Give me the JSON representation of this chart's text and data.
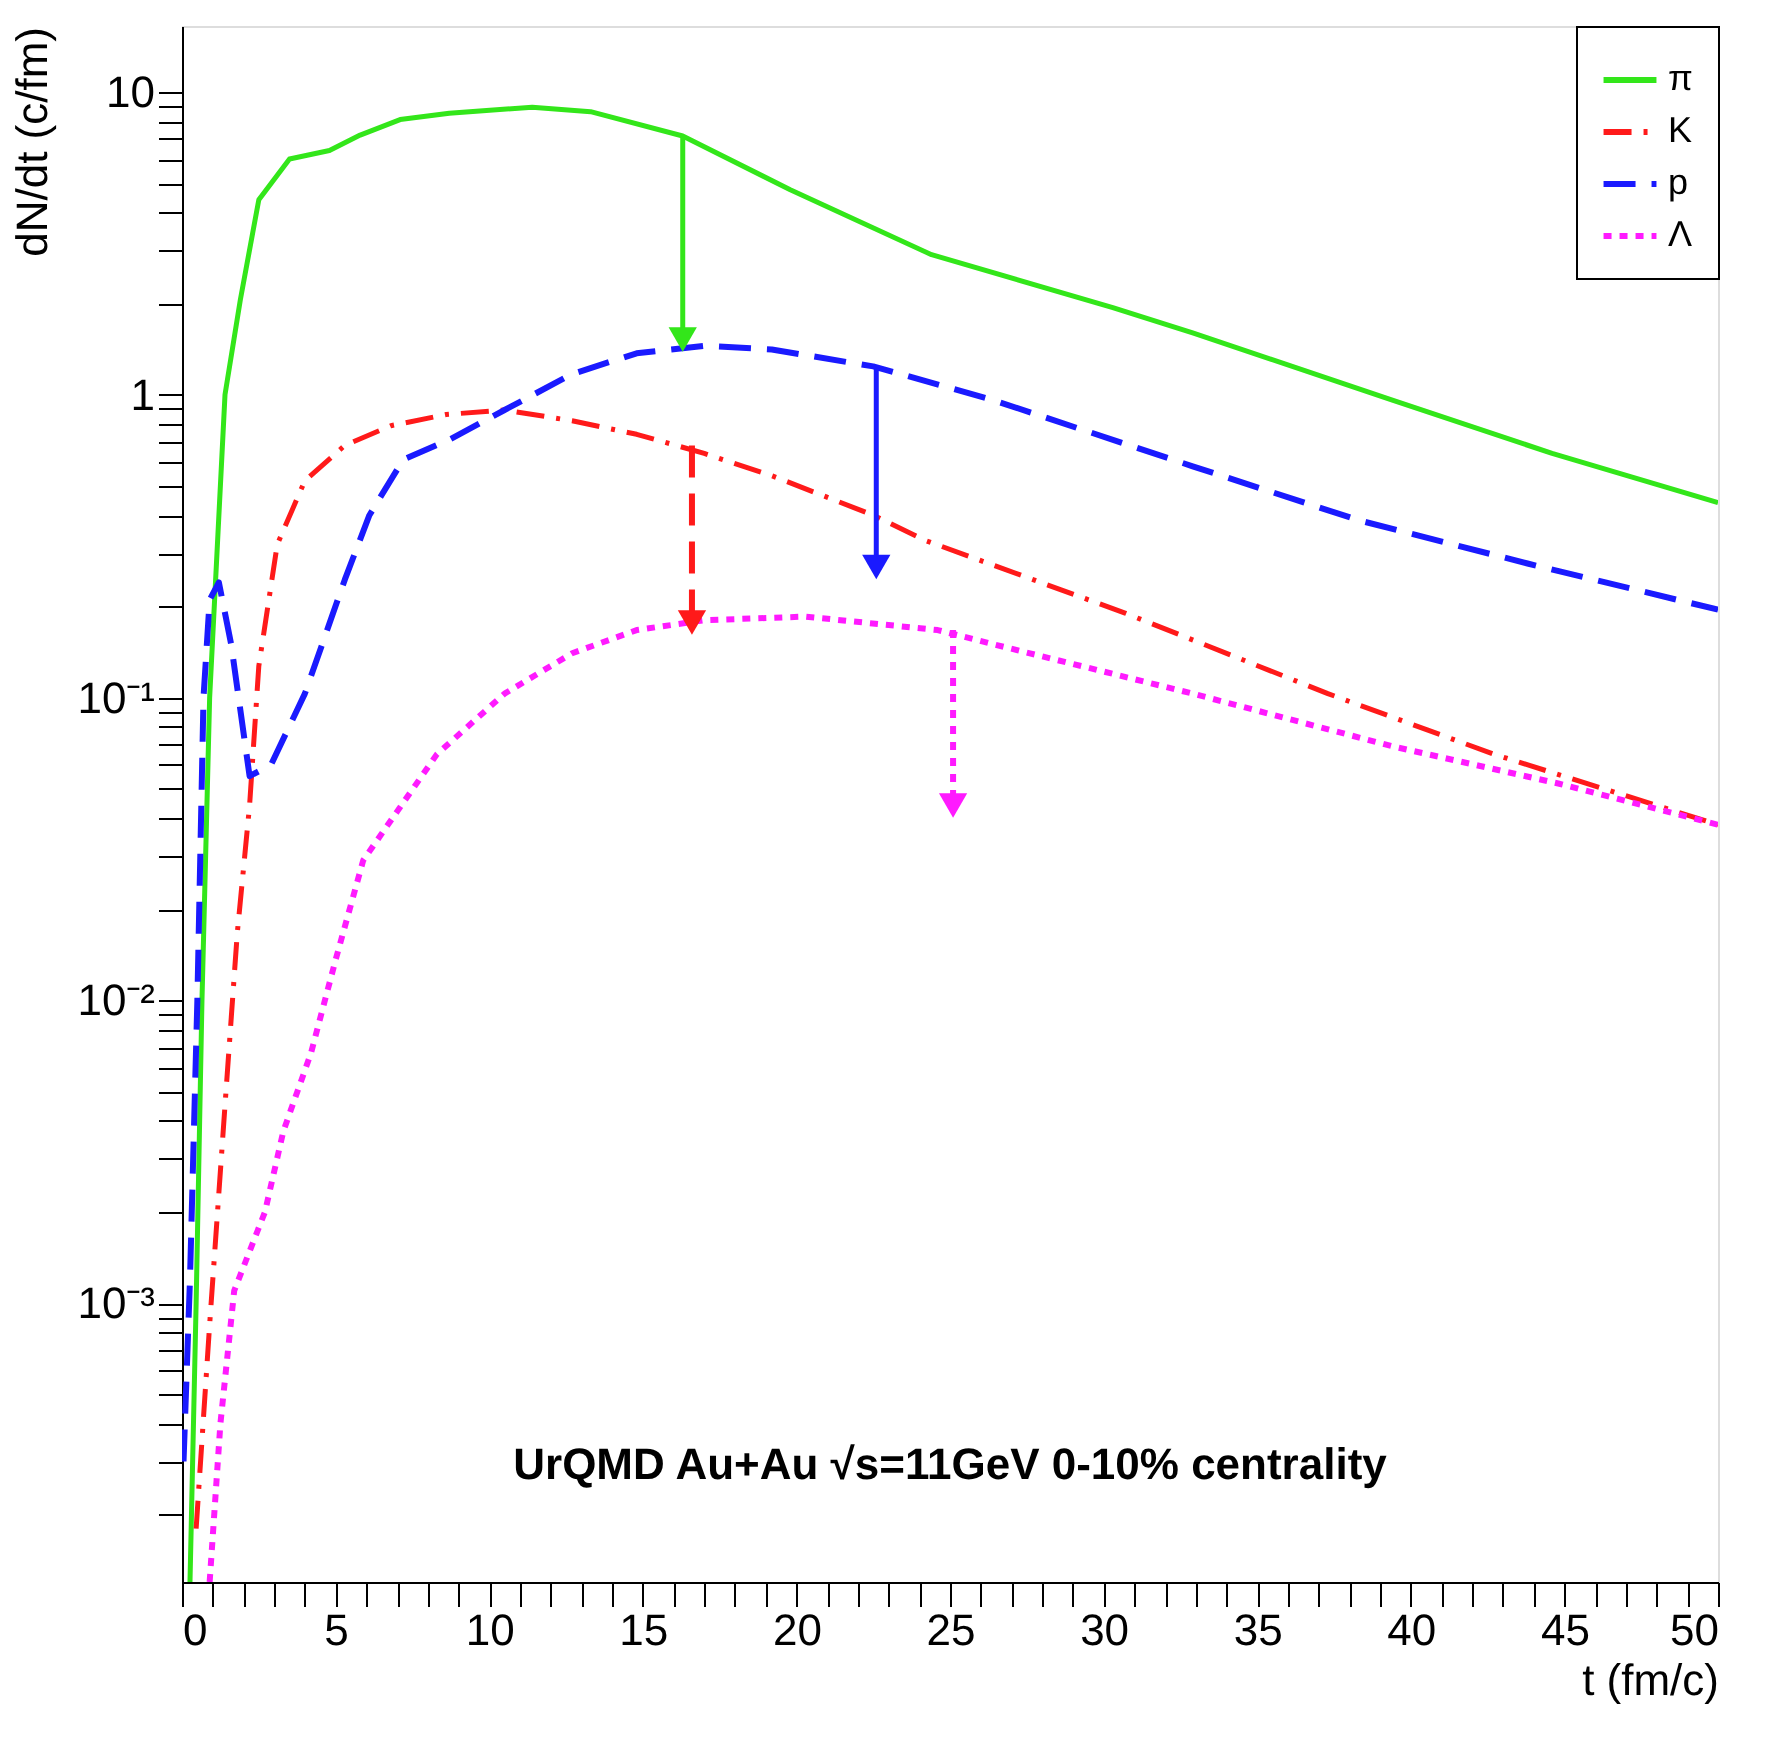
{
  "chart_data": {
    "type": "line",
    "xlabel": "t (fm/c)",
    "ylabel": "dN/dt (c/fm)",
    "log": "y",
    "grid": false,
    "legend": "top right",
    "xlim": [
      0,
      50
    ],
    "ylim": [
      0.00012,
      16.5
    ],
    "xticks": [
      0,
      {
        "value": 1,
        "label": null
      },
      {
        "value": 2,
        "label": null
      },
      {
        "value": 3,
        "label": null
      },
      {
        "value": 4,
        "label": null
      },
      5,
      {
        "value": 6,
        "label": null
      },
      {
        "value": 7,
        "label": null
      },
      {
        "value": 8,
        "label": null
      },
      {
        "value": 9,
        "label": null
      },
      10,
      {
        "value": 11,
        "label": null
      },
      {
        "value": 12,
        "label": null
      },
      {
        "value": 13,
        "label": null
      },
      {
        "value": 14,
        "label": null
      },
      15,
      {
        "value": 16,
        "label": null
      },
      {
        "value": 17,
        "label": null
      },
      {
        "value": 18,
        "label": null
      },
      {
        "value": 19,
        "label": null
      },
      20,
      {
        "value": 21,
        "label": null
      },
      {
        "value": 22,
        "label": null
      },
      {
        "value": 23,
        "label": null
      },
      {
        "value": 24,
        "label": null
      },
      25,
      {
        "value": 26,
        "label": null
      },
      {
        "value": 27,
        "label": null
      },
      {
        "value": 28,
        "label": null
      },
      {
        "value": 29,
        "label": null
      },
      30,
      {
        "value": 31,
        "label": null
      },
      {
        "value": 32,
        "label": null
      },
      {
        "value": 33,
        "label": null
      },
      {
        "value": 34,
        "label": null
      },
      35,
      {
        "value": 36,
        "label": null
      },
      {
        "value": 37,
        "label": null
      },
      {
        "value": 38,
        "label": null
      },
      {
        "value": 39,
        "label": null
      },
      40,
      {
        "value": 41,
        "label": null
      },
      {
        "value": 42,
        "label": null
      },
      {
        "value": 43,
        "label": null
      },
      {
        "value": 44,
        "label": null
      },
      45,
      {
        "value": 46,
        "label": null
      },
      {
        "value": 47,
        "label": null
      },
      {
        "value": 48,
        "label": null
      },
      {
        "value": 49,
        "label": null
      },
      50
    ],
    "yticks": [
      {
        "value": 0.0002,
        "label": null
      },
      {
        "value": 0.0003,
        "label": null
      },
      {
        "value": 0.0004,
        "label": null
      },
      {
        "value": 0.0005,
        "label": null
      },
      {
        "value": 0.0006,
        "label": null
      },
      {
        "value": 0.0007,
        "label": null
      },
      {
        "value": 0.0008,
        "label": null
      },
      {
        "value": 0.0009,
        "label": null
      },
      {
        "value": 0.001,
        "label": "10⁻³"
      },
      {
        "value": 0.002,
        "label": null
      },
      {
        "value": 0.003,
        "label": null
      },
      {
        "value": 0.004,
        "label": null
      },
      {
        "value": 0.005,
        "label": null
      },
      {
        "value": 0.006,
        "label": null
      },
      {
        "value": 0.007,
        "label": null
      },
      {
        "value": 0.008,
        "label": null
      },
      {
        "value": 0.009,
        "label": null
      },
      {
        "value": 0.01,
        "label": "10⁻²"
      },
      {
        "value": 0.02,
        "label": null
      },
      {
        "value": 0.03,
        "label": null
      },
      {
        "value": 0.04,
        "label": null
      },
      {
        "value": 0.05,
        "label": null
      },
      {
        "value": 0.06,
        "label": null
      },
      {
        "value": 0.07,
        "label": null
      },
      {
        "value": 0.08,
        "label": null
      },
      {
        "value": 0.09,
        "label": null
      },
      {
        "value": 0.1,
        "label": "10⁻¹"
      },
      {
        "value": 0.2,
        "label": null
      },
      {
        "value": 0.3,
        "label": null
      },
      {
        "value": 0.4,
        "label": null
      },
      {
        "value": 0.5,
        "label": null
      },
      {
        "value": 0.6,
        "label": null
      },
      {
        "value": 0.7,
        "label": null
      },
      {
        "value": 0.8,
        "label": null
      },
      {
        "value": 0.9,
        "label": null
      },
      1,
      {
        "value": 2,
        "label": null
      },
      {
        "value": 3,
        "label": null
      },
      {
        "value": 4,
        "label": null
      },
      {
        "value": 5,
        "label": null
      },
      {
        "value": 6,
        "label": null
      },
      {
        "value": 7,
        "label": null
      },
      {
        "value": 8,
        "label": null
      },
      {
        "value": 9,
        "label": null
      },
      10
    ],
    "annotations": [
      "UrQMD Au+Au  √s=11GeV 0-10% centrality"
    ],
    "series": [
      {
        "name": "π",
        "color": "#33e61a",
        "line_style": "solid",
        "x": [
          0.26,
          0.46,
          0.65,
          0.9,
          1.4,
          1.9,
          2.5,
          3.5,
          4.8,
          5.8,
          7.1,
          8.7,
          11.4,
          13.3,
          16.3,
          19.8,
          24.4,
          30.3,
          32.9,
          39.4,
          44.6,
          50
        ],
        "values": [
          0.00012,
          0.001,
          0.01,
          0.1,
          1,
          2.06,
          4.4,
          6.0,
          6.4,
          7.2,
          8.1,
          8.5,
          8.9,
          8.6,
          7.15,
          4.75,
          2.9,
          1.94,
          1.6,
          0.96,
          0.64,
          0.44
        ]
      },
      {
        "name": "K",
        "color": "#ff1a1a",
        "line_style": "dashdot",
        "x": [
          0.46,
          0.9,
          1.4,
          1.8,
          2.2,
          2.5,
          3.1,
          4.0,
          5.3,
          6.8,
          8.6,
          10.5,
          12.7,
          14.8,
          17.0,
          19.2,
          22.5,
          24.2,
          30.7,
          37.3,
          42.7,
          50
        ],
        "values": [
          0.00018,
          0.00085,
          0.0045,
          0.0167,
          0.044,
          0.127,
          0.32,
          0.52,
          0.68,
          0.79,
          0.86,
          0.89,
          0.82,
          0.74,
          0.64,
          0.54,
          0.4,
          0.33,
          0.19,
          0.103,
          0.065,
          0.038
        ]
      },
      {
        "name": "p",
        "color": "#1a1aff",
        "line_style": "dashed",
        "x": [
          0.05,
          0.26,
          0.5,
          0.7,
          0.9,
          1.2,
          1.6,
          2.2,
          2.9,
          4.0,
          5.3,
          6.1,
          7.2,
          8.7,
          10.5,
          12.7,
          14.8,
          17.0,
          19.2,
          22.5,
          26.4,
          32.9,
          38.3,
          43.8,
          50
        ],
        "values": [
          0.0003,
          0.0012,
          0.01,
          0.1,
          0.21,
          0.24,
          0.15,
          0.055,
          0.06,
          0.103,
          0.245,
          0.4,
          0.61,
          0.71,
          0.89,
          1.17,
          1.37,
          1.45,
          1.41,
          1.24,
          0.96,
          0.58,
          0.385,
          0.277,
          0.195
        ]
      },
      {
        "name": "Λ",
        "color": "#ff1aff",
        "line_style": "dotted",
        "x": [
          0.9,
          1.25,
          1.7,
          2.7,
          3.3,
          4.2,
          5.0,
          5.9,
          7.0,
          8.3,
          10.5,
          12.7,
          14.8,
          17.0,
          20.3,
          24.6,
          26.4,
          32.9,
          39.4,
          44.8,
          50
        ],
        "values": [
          0.00012,
          0.0004,
          0.0011,
          0.002,
          0.0037,
          0.0067,
          0.0136,
          0.029,
          0.042,
          0.065,
          0.103,
          0.14,
          0.167,
          0.18,
          0.185,
          0.167,
          0.15,
          0.103,
          0.069,
          0.052,
          0.038
        ]
      },
      {
        "type": "line",
        "color": "#33e61a",
        "line_style": "solid",
        "marker": "triangle",
        "x": [
          16.3,
          16.3
        ],
        "values": [
          7.15,
          1.52
        ]
      },
      {
        "type": "line",
        "color": "#ff1a1a",
        "line_style": "dashed",
        "marker": "triangle",
        "x": [
          16.6,
          16.6
        ],
        "values": [
          0.68,
          0.177
        ]
      },
      {
        "type": "line",
        "color": "#1a1aff",
        "line_style": "solid",
        "marker": "triangle",
        "x": [
          22.6,
          22.6
        ],
        "values": [
          1.24,
          0.27
        ]
      },
      {
        "type": "line",
        "color": "#ff1aff",
        "line_style": "dotted",
        "marker": "triangle",
        "x": [
          25.1,
          25.1
        ],
        "values": [
          0.167,
          0.044
        ]
      }
    ]
  }
}
